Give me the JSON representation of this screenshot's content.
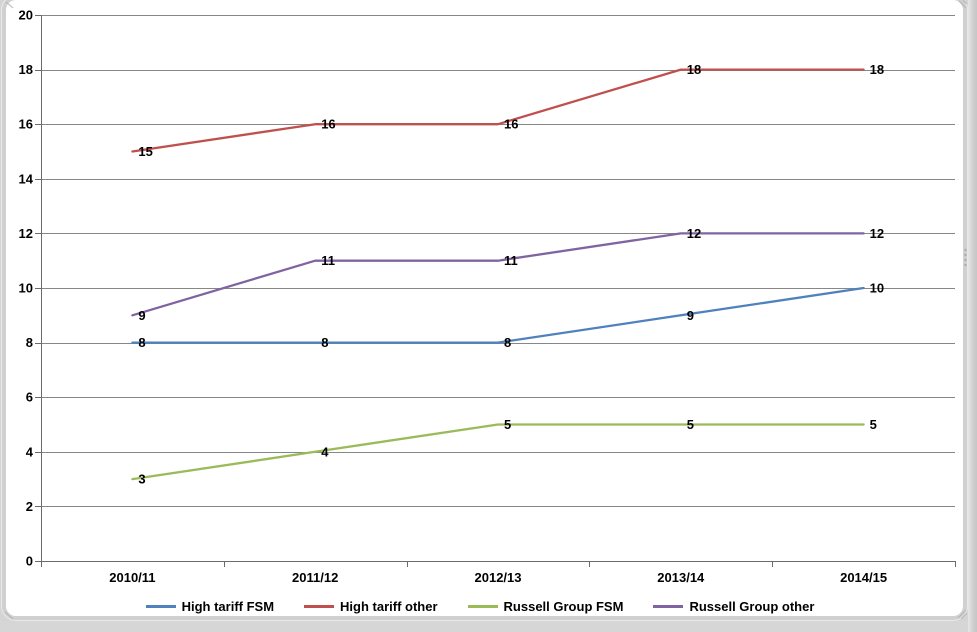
{
  "window": {
    "background_color": "#d4d4d4",
    "selection_frame_color": "#d0d0d0"
  },
  "chart_data": {
    "type": "line",
    "title": "",
    "categories": [
      "2010/11",
      "2011/12",
      "2012/13",
      "2013/14",
      "2014/15"
    ],
    "series": [
      {
        "name": "High tariff FSM",
        "color": "#4F81BD",
        "values": [
          8,
          8,
          8,
          9,
          10
        ]
      },
      {
        "name": "High tariff other",
        "color": "#C0504D",
        "values": [
          15,
          16,
          16,
          18,
          18
        ]
      },
      {
        "name": "Russell Group FSM",
        "color": "#9BBB59",
        "values": [
          3,
          4,
          5,
          5,
          5
        ]
      },
      {
        "name": "Russell Group other",
        "color": "#8064A2",
        "values": [
          9,
          11,
          11,
          12,
          12
        ]
      }
    ],
    "ylim": [
      0,
      20
    ],
    "yticks": [
      0,
      2,
      4,
      6,
      8,
      10,
      12,
      14,
      16,
      18,
      20
    ],
    "xlabel": "",
    "ylabel": "",
    "grid": true,
    "gridline_color": "#878787",
    "axis_color": "#6b6b6b",
    "data_labels": true,
    "legend_position": "bottom"
  }
}
